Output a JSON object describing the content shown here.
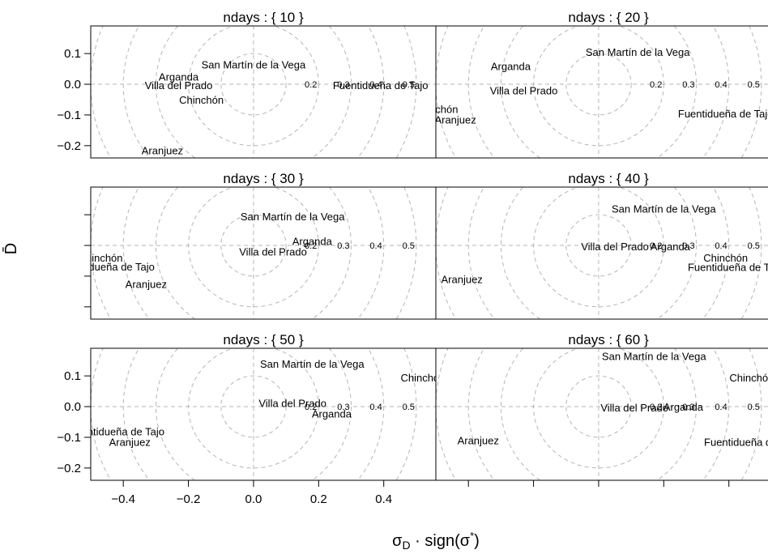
{
  "chart_data": {
    "type": "scatter",
    "panel_layout": "3 rows x 2 columns (trellis)",
    "xlabel": "σD · sign(σ*)",
    "ylabel": "D̄",
    "xlim": [
      -0.5,
      0.56
    ],
    "ylim": [
      -0.24,
      0.19
    ],
    "x_ticks": [
      -0.4,
      -0.2,
      0.0,
      0.2,
      0.4
    ],
    "x_tick_labels": [
      "−0.4",
      "−0.2",
      "0.0",
      "0.2",
      "0.4"
    ],
    "y_ticks": [
      -0.2,
      -0.1,
      0.0,
      0.1
    ],
    "y_tick_labels": [
      "−0.2",
      "−0.1",
      "0.0",
      "0.1"
    ],
    "reference_circles": [
      0.1,
      0.2,
      0.3,
      0.4,
      0.5
    ],
    "circle_labels": [
      "0.2",
      "0.3",
      "0.4",
      "0.5"
    ],
    "grid": false,
    "reference_lines": "dashed horizontal and vertical lines at 0",
    "panels": [
      {
        "strip": "ndays : { 10 }",
        "points": [
          {
            "label": "San Martín de la Vega",
            "x": 0.0,
            "y": 0.065
          },
          {
            "label": "Arganda",
            "x": -0.23,
            "y": 0.025
          },
          {
            "label": "Villa del Prado",
            "x": -0.23,
            "y": -0.003
          },
          {
            "label": "Chinchón",
            "x": -0.16,
            "y": -0.05
          },
          {
            "label": "Fuentidueña de Tajo",
            "x": 0.39,
            "y": -0.003
          },
          {
            "label": "Aranjuez",
            "x": -0.28,
            "y": -0.215
          }
        ]
      },
      {
        "strip": "ndays : { 20 }",
        "points": [
          {
            "label": "San Martín de la Vega",
            "x": 0.12,
            "y": 0.105
          },
          {
            "label": "Arganda",
            "x": -0.27,
            "y": 0.06
          },
          {
            "label": "Villa del Prado",
            "x": -0.23,
            "y": -0.02
          },
          {
            "label": "Chinchón",
            "x": -0.5,
            "y": -0.08
          },
          {
            "label": "Aranjuez",
            "x": -0.44,
            "y": -0.115
          },
          {
            "label": "Fuentidueña de Tajo",
            "x": 0.39,
            "y": -0.095
          }
        ]
      },
      {
        "strip": "ndays : { 30 }",
        "points": [
          {
            "label": "San Martín de la Vega",
            "x": 0.12,
            "y": 0.095
          },
          {
            "label": "Arganda",
            "x": 0.18,
            "y": 0.015
          },
          {
            "label": "Villa del Prado",
            "x": 0.06,
            "y": -0.02
          },
          {
            "label": "Chinchón",
            "x": -0.47,
            "y": -0.04
          },
          {
            "label": "Fuentidueña de Tajo",
            "x": -0.45,
            "y": -0.068
          },
          {
            "label": "Aranjuez",
            "x": -0.33,
            "y": -0.125
          }
        ]
      },
      {
        "strip": "ndays : { 40 }",
        "points": [
          {
            "label": "San Martín de la Vega",
            "x": 0.2,
            "y": 0.12
          },
          {
            "label": "Villa del Prado",
            "x": 0.05,
            "y": -0.003
          },
          {
            "label": "Arganda",
            "x": 0.22,
            "y": -0.003
          },
          {
            "label": "Chinchón",
            "x": 0.39,
            "y": -0.04
          },
          {
            "label": "Fuentidueña de Tajo",
            "x": 0.42,
            "y": -0.07
          },
          {
            "label": "Aranjuez",
            "x": -0.42,
            "y": -0.11
          }
        ]
      },
      {
        "strip": "ndays : { 50 }",
        "points": [
          {
            "label": "San Martín de la Vega",
            "x": 0.18,
            "y": 0.14
          },
          {
            "label": "Chinchón",
            "x": 0.52,
            "y": 0.095
          },
          {
            "label": "Villa del Prado",
            "x": 0.12,
            "y": 0.012
          },
          {
            "label": "Arganda",
            "x": 0.24,
            "y": -0.022
          },
          {
            "label": "Fuentidueña de Tajo",
            "x": -0.42,
            "y": -0.08
          },
          {
            "label": "Aranjuez",
            "x": -0.38,
            "y": -0.115
          }
        ]
      },
      {
        "strip": "ndays : { 60 }",
        "points": [
          {
            "label": "San Martín de la Vega",
            "x": 0.17,
            "y": 0.165
          },
          {
            "label": "Chinchón",
            "x": 0.47,
            "y": 0.095
          },
          {
            "label": "Villa del Prado",
            "x": 0.11,
            "y": -0.003
          },
          {
            "label": "Arganda",
            "x": 0.26,
            "y": 0.0
          },
          {
            "label": "Aranjuez",
            "x": -0.37,
            "y": -0.11
          },
          {
            "label": "Fuentidueña de Tajo",
            "x": 0.47,
            "y": -0.115
          }
        ]
      }
    ]
  }
}
